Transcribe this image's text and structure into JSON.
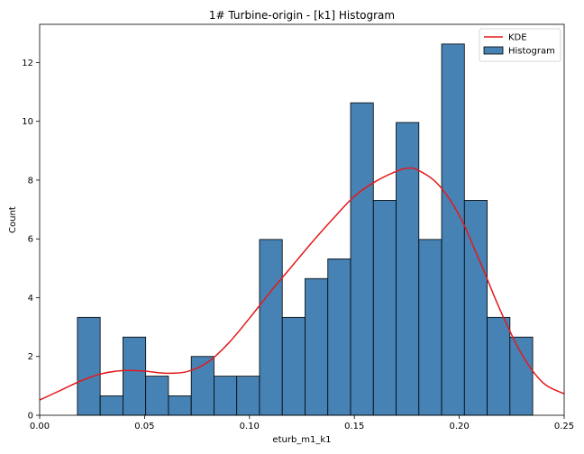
{
  "chart_data": {
    "type": "bar",
    "title": "1# Turbine-origin - [k1] Histogram",
    "xlabel": "eturb_m1_k1",
    "ylabel": "Count",
    "xlim": [
      0.0,
      0.25
    ],
    "ylim": [
      0,
      13.3
    ],
    "x_ticks": [
      "0.00",
      "0.05",
      "0.10",
      "0.15",
      "0.20",
      "0.25"
    ],
    "y_ticks": [
      "0",
      "2",
      "4",
      "6",
      "8",
      "10",
      "12"
    ],
    "grid": false,
    "legend_position": "top-right",
    "legend": {
      "kde_label": "KDE",
      "hist_label": "Histogram"
    },
    "colors": {
      "bar_fill": "#4682b4",
      "bar_edge": "#000000",
      "kde_line": "#e31a1c"
    },
    "histogram": {
      "bin_edges": [
        0.018,
        0.02885,
        0.0397,
        0.05055,
        0.0614,
        0.07225,
        0.0831,
        0.09395,
        0.1048,
        0.11565,
        0.1265,
        0.13735,
        0.1482,
        0.15905,
        0.1699,
        0.18075,
        0.1916,
        0.20245,
        0.2133,
        0.22415,
        0.235
      ],
      "counts": [
        3.33,
        0.66,
        2.66,
        1.33,
        0.66,
        2.0,
        1.33,
        1.33,
        5.98,
        3.33,
        4.65,
        5.32,
        10.63,
        7.31,
        9.96,
        5.98,
        12.63,
        7.31,
        3.33,
        2.66
      ]
    },
    "kde": {
      "x": [
        0.0,
        0.01,
        0.02,
        0.03,
        0.04,
        0.05,
        0.06,
        0.07,
        0.08,
        0.09,
        0.1,
        0.11,
        0.12,
        0.13,
        0.14,
        0.15,
        0.16,
        0.17,
        0.175,
        0.18,
        0.19,
        0.2,
        0.21,
        0.22,
        0.23,
        0.24,
        0.25
      ],
      "y": [
        0.52,
        0.85,
        1.18,
        1.42,
        1.52,
        1.5,
        1.43,
        1.48,
        1.8,
        2.45,
        3.3,
        4.2,
        5.05,
        5.9,
        6.7,
        7.45,
        7.95,
        8.3,
        8.4,
        8.35,
        7.85,
        6.8,
        5.2,
        3.5,
        2.05,
        1.1,
        0.73
      ]
    }
  }
}
